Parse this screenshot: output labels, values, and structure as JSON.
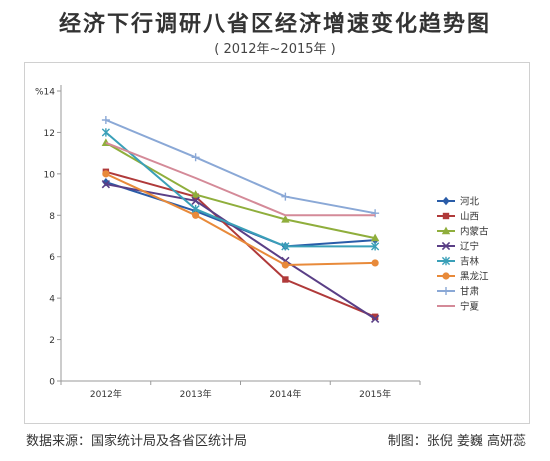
{
  "title": "经济下行调研八省区经济增速变化趋势图",
  "subtitle": "( 2012年~2015年 )",
  "footer": {
    "source": "数据来源：国家统计局及各省区统计局",
    "credit": "制图：张倪 姜巍 高妍蕊"
  },
  "chart_data": {
    "type": "line",
    "ylabel": "%",
    "ylim": [
      0,
      14
    ],
    "yticks": [
      0,
      2,
      4,
      6,
      8,
      10,
      12,
      14
    ],
    "categories": [
      "2012年",
      "2013年",
      "2014年",
      "2015年"
    ],
    "legend_position": "right",
    "grid": false,
    "series": [
      {
        "name": "河北",
        "color": "#2a5ca8",
        "marker": "diamond",
        "values": [
          9.6,
          8.2,
          6.5,
          6.8
        ]
      },
      {
        "name": "山西",
        "color": "#b03a3a",
        "marker": "square",
        "values": [
          10.1,
          8.9,
          4.9,
          3.1
        ]
      },
      {
        "name": "内蒙古",
        "color": "#8fae3c",
        "marker": "triangle",
        "values": [
          11.5,
          9.0,
          7.8,
          6.9
        ]
      },
      {
        "name": "辽宁",
        "color": "#5a3f86",
        "marker": "x",
        "values": [
          9.5,
          8.7,
          5.8,
          3.0
        ]
      },
      {
        "name": "吉林",
        "color": "#3aa0b8",
        "marker": "star",
        "values": [
          12.0,
          8.3,
          6.5,
          6.5
        ]
      },
      {
        "name": "黑龙江",
        "color": "#e88a3a",
        "marker": "circle",
        "values": [
          10.0,
          8.0,
          5.6,
          5.7
        ]
      },
      {
        "name": "甘肃",
        "color": "#8aa8d6",
        "marker": "plus",
        "values": [
          12.6,
          10.8,
          8.9,
          8.1
        ]
      },
      {
        "name": "宁夏",
        "color": "#d48a98",
        "marker": "none",
        "values": [
          11.5,
          9.8,
          8.0,
          8.0
        ]
      }
    ]
  }
}
